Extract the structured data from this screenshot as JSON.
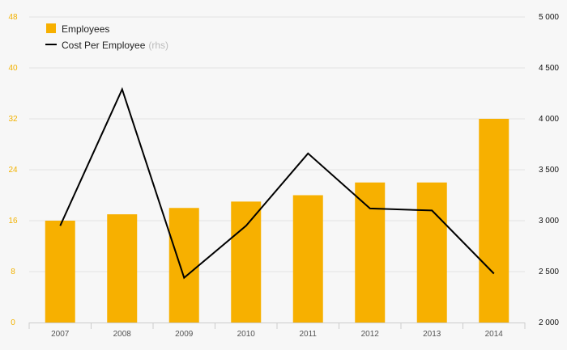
{
  "chart_data": {
    "type": "bar",
    "categories": [
      "2007",
      "2008",
      "2009",
      "2010",
      "2011",
      "2012",
      "2013",
      "2014"
    ],
    "series": [
      {
        "name": "Employees",
        "type": "bar",
        "axis": "left",
        "color": "#f7b000",
        "values": [
          16,
          17,
          18,
          19,
          20,
          22,
          22,
          32
        ]
      },
      {
        "name": "Cost Per Employee",
        "type": "line",
        "axis": "right",
        "color": "#000000",
        "values": [
          2950,
          4290,
          2440,
          2950,
          3660,
          3120,
          3100,
          2480
        ]
      }
    ],
    "left_axis": {
      "ticks": [
        "0",
        "8",
        "16",
        "24",
        "32",
        "40",
        "48"
      ],
      "min": 0,
      "max": 48
    },
    "right_axis": {
      "ticks": [
        "2 000",
        "2 500",
        "3 000",
        "3 500",
        "4 000",
        "4 500",
        "5 000"
      ],
      "min": 2000,
      "max": 5000
    },
    "legend": {
      "placement": "top-left",
      "line_suffix": "(rhs)"
    },
    "grid": true,
    "title": "",
    "xlabel": "",
    "ylabel": ""
  }
}
